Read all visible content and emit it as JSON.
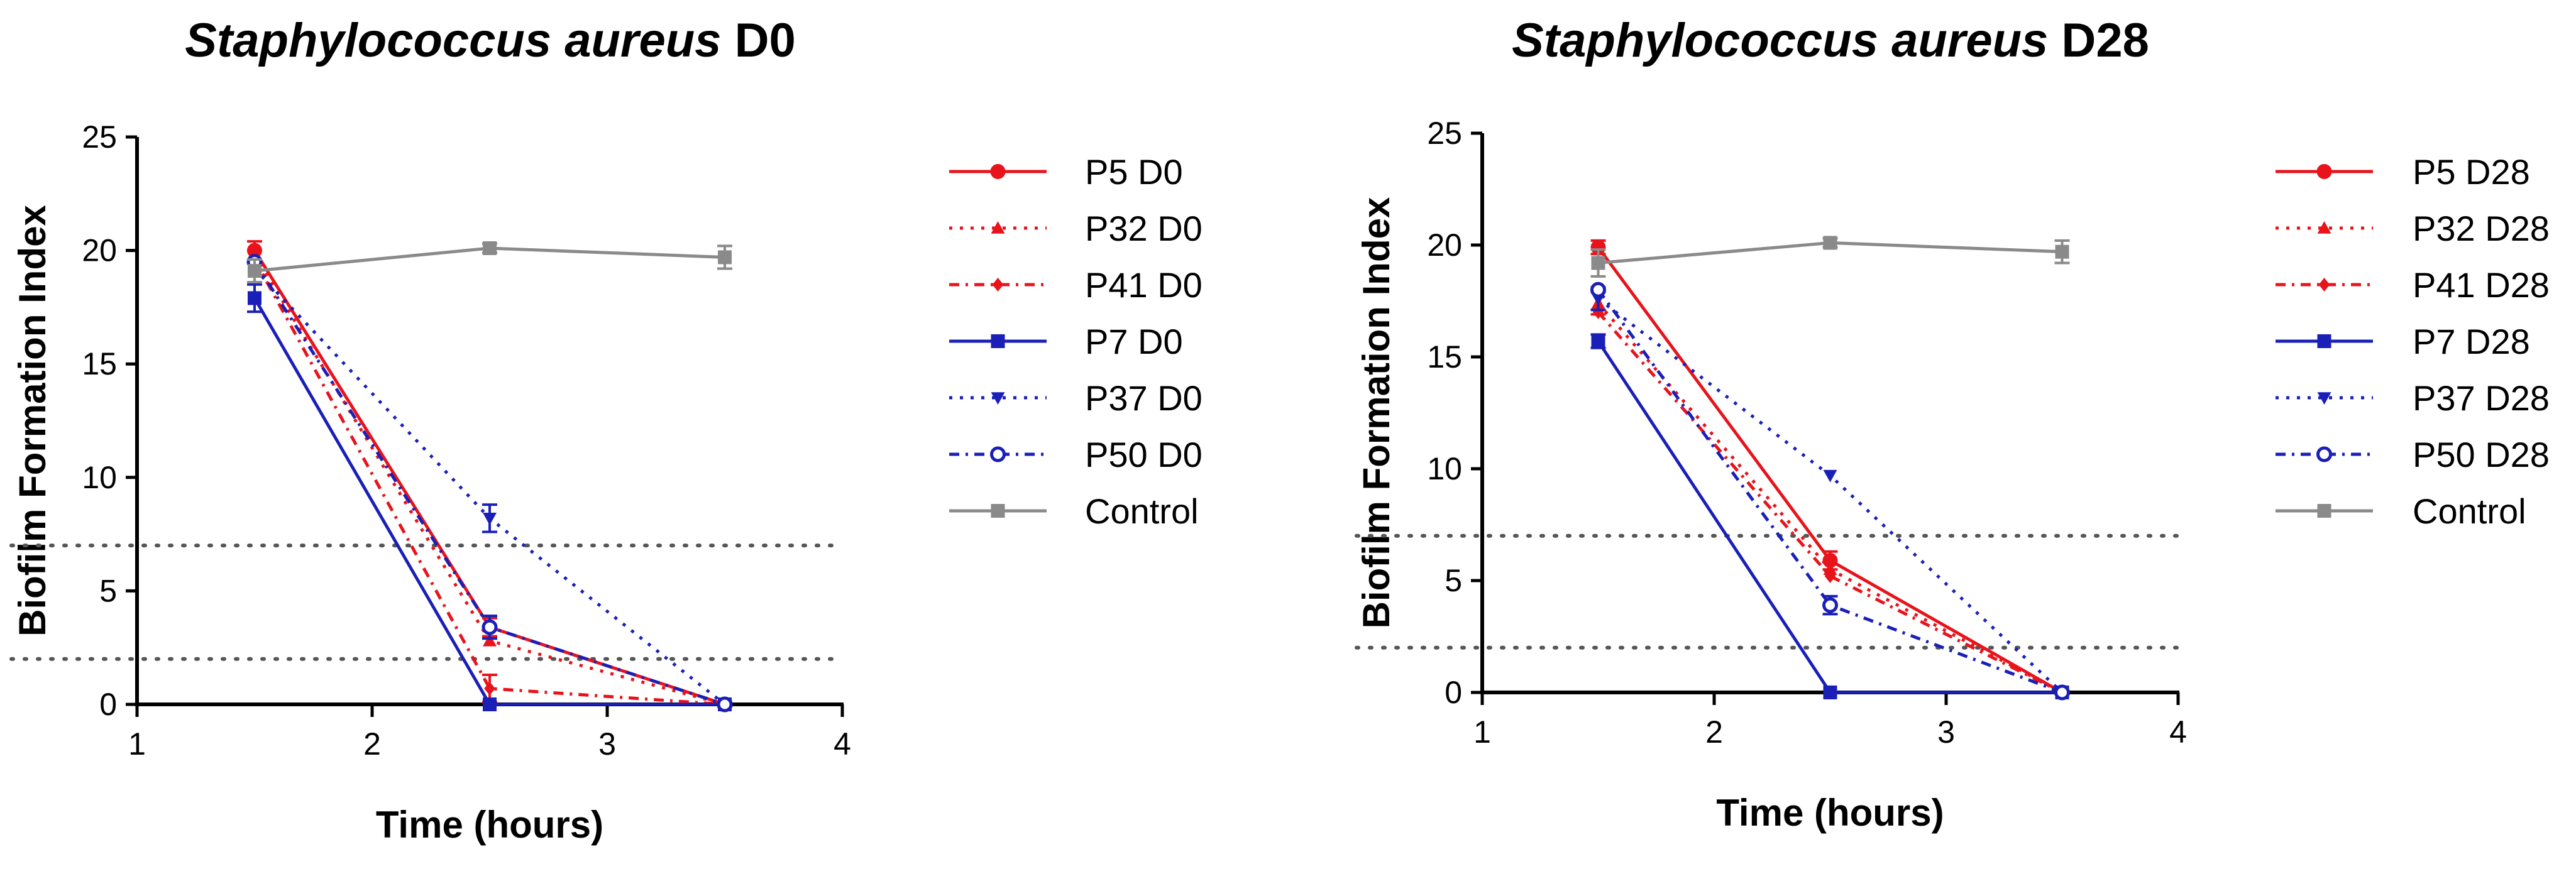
{
  "chart_data": [
    {
      "type": "line",
      "title_italic": "Staphylococcus aureus",
      "title_suffix": "D0",
      "xlabel": "Time (hours)",
      "ylabel": "Biofilm Formation Index",
      "xlim": [
        1,
        4
      ],
      "ylim": [
        0,
        25
      ],
      "xticks": [
        "1",
        "2",
        "3",
        "4"
      ],
      "yticks": [
        "0",
        "5",
        "10",
        "15",
        "20",
        "25"
      ],
      "x": [
        1.5,
        2.5,
        3.5
      ],
      "reference_lines": [
        7,
        2
      ],
      "series": [
        {
          "name": "P5 D0",
          "color": "#e8131b",
          "dash": "",
          "marker": "circle-filled",
          "values": [
            20,
            3.4,
            0
          ],
          "err": [
            0.4,
            0.4,
            0.1
          ]
        },
        {
          "name": "P32 D0",
          "color": "#e8131b",
          "dash": "5,12",
          "marker": "triangle-up",
          "values": [
            19.8,
            2.8,
            0
          ],
          "err": [
            0,
            0,
            0
          ]
        },
        {
          "name": "P41 D0",
          "color": "#e8131b",
          "dash": "16,10,4,10",
          "marker": "diamond",
          "values": [
            19.6,
            0.7,
            0
          ],
          "err": [
            0,
            0.6,
            0
          ]
        },
        {
          "name": "P7 D0",
          "color": "#1a1fb8",
          "dash": "",
          "marker": "square",
          "values": [
            17.9,
            0,
            0
          ],
          "err": [
            0.6,
            0,
            0
          ]
        },
        {
          "name": "P37 D0",
          "color": "#1a1fb8",
          "dash": "5,12",
          "marker": "triangle-down",
          "values": [
            19.2,
            8.2,
            0
          ],
          "err": [
            0,
            0.6,
            0
          ]
        },
        {
          "name": "P50 D0",
          "color": "#1a1fb8",
          "dash": "16,10,4,10",
          "marker": "circle-open",
          "values": [
            19.5,
            3.4,
            0
          ],
          "err": [
            0,
            0.5,
            0
          ]
        },
        {
          "name": "Control",
          "color": "#8a8a8a",
          "dash": "",
          "marker": "square",
          "values": [
            19.1,
            20.1,
            19.7
          ],
          "err": [
            0.5,
            0.2,
            0.5
          ]
        }
      ]
    },
    {
      "type": "line",
      "title_italic": "Staphylococcus aureus",
      "title_suffix": "D28",
      "xlabel": "Time (hours)",
      "ylabel": "Biofilm Formation Index",
      "xlim": [
        1,
        4
      ],
      "ylim": [
        0,
        25
      ],
      "xticks": [
        "1",
        "2",
        "3",
        "4"
      ],
      "yticks": [
        "0",
        "5",
        "10",
        "15",
        "20",
        "25"
      ],
      "x": [
        1.5,
        2.5,
        3.5
      ],
      "reference_lines": [
        7,
        2
      ],
      "series": [
        {
          "name": "P5 D28",
          "color": "#e8131b",
          "dash": "",
          "marker": "circle-filled",
          "values": [
            19.9,
            5.9,
            0
          ],
          "err": [
            0.3,
            0.4,
            0
          ]
        },
        {
          "name": "P32 D28",
          "color": "#e8131b",
          "dash": "5,12",
          "marker": "triangle-up",
          "values": [
            17.4,
            5.5,
            0
          ],
          "err": [
            0.5,
            0,
            0
          ]
        },
        {
          "name": "P41 D28",
          "color": "#e8131b",
          "dash": "16,10,4,10",
          "marker": "diamond",
          "values": [
            17.0,
            5.2,
            0
          ],
          "err": [
            0,
            0,
            0
          ]
        },
        {
          "name": "P7 D28",
          "color": "#1a1fb8",
          "dash": "",
          "marker": "square",
          "values": [
            15.7,
            0,
            0
          ],
          "err": [
            0.3,
            0,
            0
          ]
        },
        {
          "name": "P37 D28",
          "color": "#1a1fb8",
          "dash": "5,12",
          "marker": "triangle-down",
          "values": [
            17.6,
            9.7,
            0
          ],
          "err": [
            0.5,
            0,
            0
          ]
        },
        {
          "name": "P50 D28",
          "color": "#1a1fb8",
          "dash": "16,10,4,10",
          "marker": "circle-open",
          "values": [
            18.0,
            3.9,
            0
          ],
          "err": [
            0,
            0.4,
            0
          ]
        },
        {
          "name": "Control",
          "color": "#8a8a8a",
          "dash": "",
          "marker": "square",
          "values": [
            19.2,
            20.1,
            19.7
          ],
          "err": [
            0.6,
            0.2,
            0.5
          ]
        }
      ]
    }
  ]
}
